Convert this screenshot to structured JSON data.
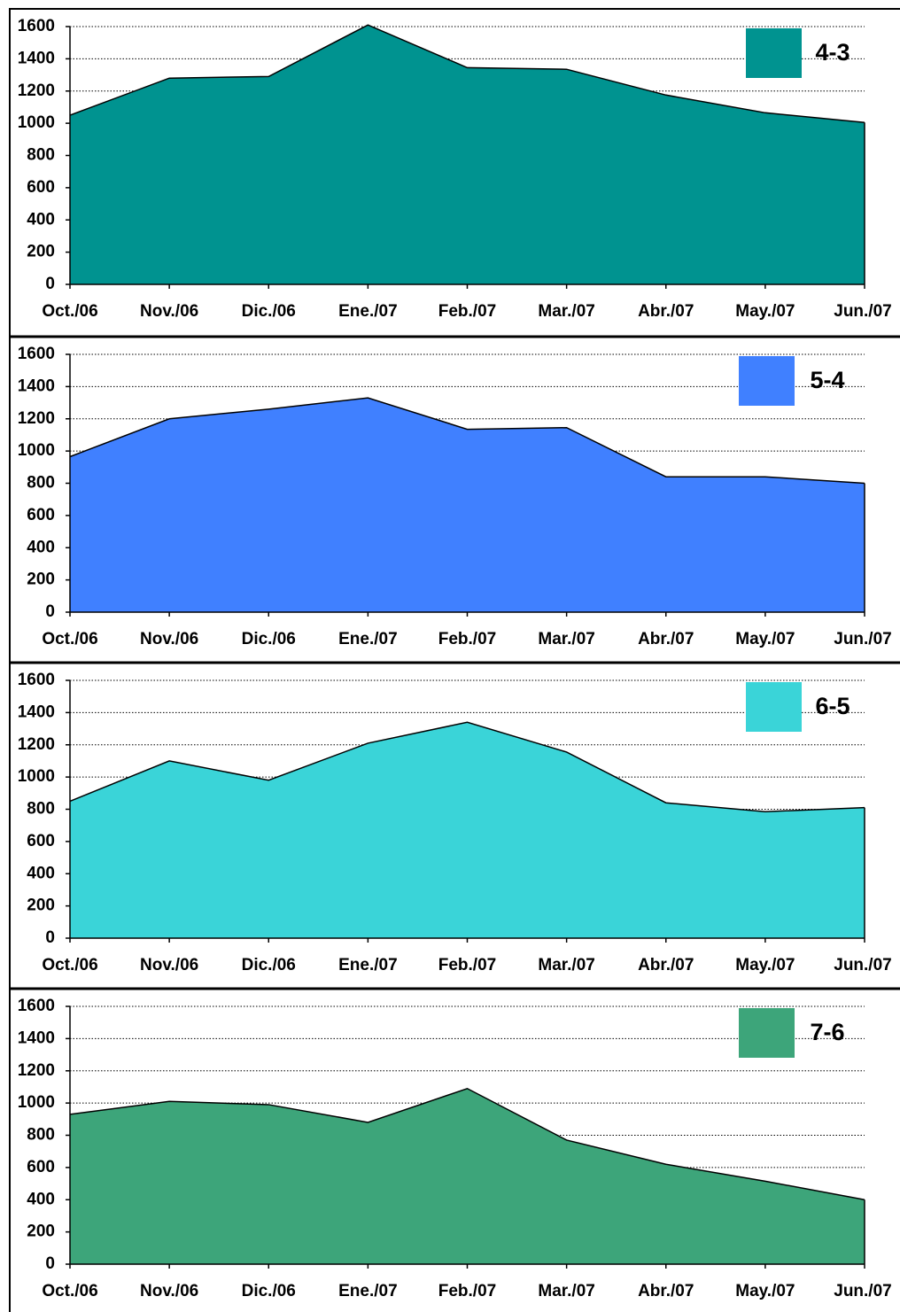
{
  "chart_data": [
    {
      "type": "area",
      "categories": [
        "Oct./06",
        "Nov./06",
        "Dic./06",
        "Ene./07",
        "Feb./07",
        "Mar./07",
        "Abr./07",
        "May./07",
        "Jun./07"
      ],
      "series": [
        {
          "name": "4-3",
          "color": "#009390",
          "values": [
            1050,
            1280,
            1290,
            1610,
            1345,
            1335,
            1175,
            1065,
            1005
          ]
        }
      ],
      "ylim": [
        0,
        1600
      ],
      "yticks": [
        0,
        200,
        400,
        600,
        800,
        1000,
        1200,
        1400,
        1600
      ],
      "grid": true,
      "legend": "upper right"
    },
    {
      "type": "area",
      "categories": [
        "Oct./06",
        "Nov./06",
        "Dic./06",
        "Ene./07",
        "Feb./07",
        "Mar./07",
        "Abr./07",
        "May./07",
        "Jun./07"
      ],
      "series": [
        {
          "name": "5-4",
          "color": "#4080FF",
          "values": [
            965,
            1200,
            1260,
            1330,
            1135,
            1145,
            840,
            840,
            800
          ]
        }
      ],
      "ylim": [
        0,
        1600
      ],
      "yticks": [
        0,
        200,
        400,
        600,
        800,
        1000,
        1200,
        1400,
        1600
      ],
      "grid": true,
      "legend": "upper right"
    },
    {
      "type": "area",
      "categories": [
        "Oct./06",
        "Nov./06",
        "Dic./06",
        "Ene./07",
        "Feb./07",
        "Mar./07",
        "Abr./07",
        "May./07",
        "Jun./07"
      ],
      "series": [
        {
          "name": "6-5",
          "color": "#3AD4D8",
          "values": [
            850,
            1100,
            980,
            1210,
            1340,
            1155,
            840,
            785,
            810
          ]
        }
      ],
      "ylim": [
        0,
        1600
      ],
      "yticks": [
        0,
        200,
        400,
        600,
        800,
        1000,
        1200,
        1400,
        1600
      ],
      "grid": true,
      "legend": "upper right"
    },
    {
      "type": "area",
      "categories": [
        "Oct./06",
        "Nov./06",
        "Dic./06",
        "Ene./07",
        "Feb./07",
        "Mar./07",
        "Abr./07",
        "May./07",
        "Jun./07"
      ],
      "series": [
        {
          "name": "7-6",
          "color": "#3DA57A",
          "values": [
            930,
            1010,
            990,
            880,
            1090,
            770,
            620,
            515,
            400
          ]
        }
      ],
      "ylim": [
        0,
        1600
      ],
      "yticks": [
        0,
        200,
        400,
        600,
        800,
        1000,
        1200,
        1400,
        1600
      ],
      "grid": true,
      "legend": "upper right"
    }
  ]
}
